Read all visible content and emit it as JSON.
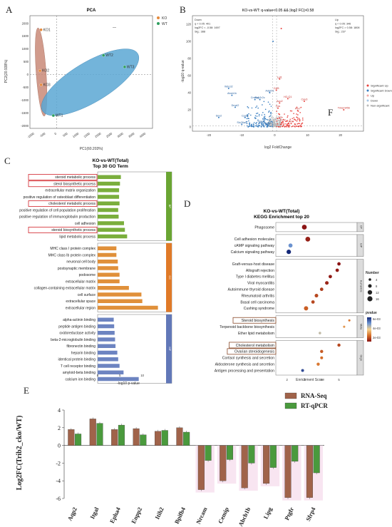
{
  "panels": {
    "a": "A",
    "b": "B",
    "c": "C",
    "d": "D",
    "e": "E",
    "f": "F"
  },
  "pca": {
    "title": "PCA",
    "xlabel": "PC1(60.203%)",
    "ylabel": "PC2(20.938%)",
    "legend": [
      {
        "name": "KO",
        "color": "#e58a3c"
      },
      {
        "name": "WT",
        "color": "#2e9e5e"
      }
    ],
    "dash_mark": "—",
    "xticks": [
      "-1000",
      "-500",
      "0",
      "500",
      "1000",
      "1500",
      "2000",
      "2500",
      "3000",
      "3500",
      "4000"
    ],
    "yticks": [
      "2000",
      "1500",
      "1000",
      "500",
      "0",
      "-500",
      "-1000",
      "-1500",
      "-2000"
    ],
    "points": [
      {
        "label": "KO1",
        "x": -700,
        "y": 1750,
        "group": "KO"
      },
      {
        "label": "KO2",
        "x": -750,
        "y": 150,
        "group": "KO"
      },
      {
        "label": "KO3",
        "x": -700,
        "y": -400,
        "group": "KO"
      },
      {
        "label": "WT1",
        "x": -150,
        "y": -1600,
        "group": "WT"
      },
      {
        "label": "WT2",
        "x": 2100,
        "y": 750,
        "group": "WT"
      },
      {
        "label": "WT3",
        "x": 3050,
        "y": 300,
        "group": "WT"
      }
    ]
  },
  "volcano": {
    "title": "KO-vs-WT: q-value<0.05 && |log2 FC|>0.58",
    "xlabel": "log2 FoldChange",
    "ylabel": "-log10 q-value",
    "down_box": [
      "Down",
      "q < 0.05: 401",
      "log2FC < -0.58: 1697",
      "Sig.: 388"
    ],
    "up_box": [
      "Up",
      "q < 0.05: 346",
      "log2FC > 0.58: 1808",
      "Sig.: 237"
    ],
    "legend": [
      {
        "name": "Significant Up",
        "color": "#e8413c"
      },
      {
        "name": "Significant Down",
        "color": "#3a7fc1"
      },
      {
        "name": "Up",
        "color": "#f2a9a6"
      },
      {
        "name": "Down",
        "color": "#a7c6e6"
      },
      {
        "name": "Non-significant",
        "color": "#bbbbbb"
      }
    ],
    "xticks": [
      "-20",
      "-10",
      "0",
      "10",
      "20"
    ],
    "yticks": [
      "0",
      "20",
      "40",
      "60",
      "80",
      "100",
      "120"
    ],
    "genes_down": [
      {
        "label": "Wscd2",
        "x": -14,
        "y": 45
      },
      {
        "label": "Abcb1b",
        "x": -13,
        "y": 37
      },
      {
        "label": "Cmss1",
        "x": -6,
        "y": 32
      },
      {
        "label": "Ppp2r2c",
        "x": -4.5,
        "y": 32
      },
      {
        "label": "Adgrb1",
        "x": -1.5,
        "y": 40
      },
      {
        "label": "Dmxl2",
        "x": -12,
        "y": 23
      },
      {
        "label": "Snx2",
        "x": -17,
        "y": 11
      },
      {
        "label": "Cpsf6",
        "x": -9,
        "y": 11
      },
      {
        "label": "Slc26a0",
        "x": -10,
        "y": 3
      },
      {
        "label": "Stmn1",
        "x": -4,
        "y": 4
      },
      {
        "label": "Ago2",
        "x": -2,
        "y": 2
      }
    ],
    "genes_up": [
      {
        "label": "Lyl1",
        "x": 1.5,
        "y": 56
      },
      {
        "label": "Ccl5",
        "x": 0.5,
        "y": 43
      },
      {
        "label": "Aco2",
        "x": 1.5,
        "y": 28
      },
      {
        "label": "H2-Q1",
        "x": 4,
        "y": 33
      },
      {
        "label": "Cav3",
        "x": 9,
        "y": 30
      },
      {
        "label": "Fos",
        "x": 1,
        "y": 22
      },
      {
        "label": "Ptk7",
        "x": 7,
        "y": 19
      },
      {
        "label": "Ccl2",
        "x": 2.5,
        "y": 6
      },
      {
        "label": "Rrm",
        "x": 5,
        "y": 4
      },
      {
        "label": "Tmem45b",
        "x": 21,
        "y": 20
      }
    ]
  },
  "go": {
    "title1": "KO-vs-WT(Total)",
    "title2": "Top 30 GO Term",
    "xlabel": "-log10 p-value",
    "xticks": [
      "0",
      "5",
      "10"
    ],
    "bp_tag": "BP",
    "cc_tag": "CC",
    "mf_tag": "MF",
    "bp": [
      {
        "term": "steroid metabolic process",
        "value": 5.2,
        "boxed": true
      },
      {
        "term": "sterol biosynthetic process",
        "value": 5.0,
        "boxed": true
      },
      {
        "term": "extracellular matrix organization",
        "value": 4.8,
        "boxed": false
      },
      {
        "term": "positive regulation of osteoblast differentiation",
        "value": 4.8,
        "boxed": false
      },
      {
        "term": "cholesterol metabolic process",
        "value": 4.9,
        "boxed": true
      },
      {
        "term": "positive regulation of cell population proliferation",
        "value": 4.6,
        "boxed": false
      },
      {
        "term": "positive regulation of immunoglobulin production",
        "value": 4.7,
        "boxed": false
      },
      {
        "term": "cell adhesion",
        "value": 5.9,
        "boxed": false
      },
      {
        "term": "steroid biosynthetic process",
        "value": 6.1,
        "boxed": true
      },
      {
        "term": "lipid metabolic process",
        "value": 6.6,
        "boxed": false
      }
    ],
    "cc": [
      {
        "term": "MHC class I protein complex",
        "value": 4.2
      },
      {
        "term": "MHC class Ib protein complex",
        "value": 4.2
      },
      {
        "term": "neuronal cell body",
        "value": 4.5
      },
      {
        "term": "postsynaptic membrane",
        "value": 4.6
      },
      {
        "term": "podosome",
        "value": 4.9
      },
      {
        "term": "extracellular matrix",
        "value": 4.9
      },
      {
        "term": "collagen-containing extracellular matrix",
        "value": 7.0
      },
      {
        "term": "cell surface",
        "value": 9.8
      },
      {
        "term": "extracellular space",
        "value": 10.0
      },
      {
        "term": "extracellular region",
        "value": 13.5
      }
    ],
    "mf": [
      {
        "term": "alpha-actinin binding",
        "value": 3.6
      },
      {
        "term": "peptide antigen binding",
        "value": 3.7
      },
      {
        "term": "oxidoreductase activity",
        "value": 3.8
      },
      {
        "term": "beta-2-microglobulin binding",
        "value": 3.9
      },
      {
        "term": "fibronectin binding",
        "value": 4.0
      },
      {
        "term": "heparin binding",
        "value": 4.4
      },
      {
        "term": "identical protein binding",
        "value": 4.6
      },
      {
        "term": "T cell receptor binding",
        "value": 4.9
      },
      {
        "term": "amyloid-beta binding",
        "value": 5.8
      },
      {
        "term": "calcium ion binding",
        "value": 9.2
      }
    ]
  },
  "kegg": {
    "title1": "KO-vs-WT(Total)",
    "title2": "KEGG Enrichment top 20",
    "xlabel": "Enrichment Score",
    "xticks": [
      "2",
      "3",
      "4",
      "5"
    ],
    "size_title": "Number",
    "size_items": [
      "4",
      "8",
      "12",
      "16"
    ],
    "color_title": "pvalue",
    "color_ticks": [
      "6e-03",
      "4e-03",
      "2e-03"
    ],
    "groups": [
      {
        "tag": "CP",
        "items": [
          {
            "term": "Phagosome",
            "score": 3.0,
            "n": 14,
            "p": 0.0003,
            "boxed": false
          }
        ]
      },
      {
        "tag": "EIP",
        "items": [
          {
            "term": "Cell adhesion molecules",
            "score": 3.2,
            "n": 14,
            "p": 0.0005,
            "boxed": false
          },
          {
            "term": "cAMP signaling pathway",
            "score": 2.2,
            "n": 10,
            "p": 0.005,
            "boxed": false
          },
          {
            "term": "Calcium signaling pathway",
            "score": 2.1,
            "n": 12,
            "p": 0.0065,
            "boxed": false
          }
        ]
      },
      {
        "tag": "HumanDis",
        "items": [
          {
            "term": "Graft-versus-host disease",
            "score": 5.0,
            "n": 7,
            "p": 0.0003,
            "boxed": false
          },
          {
            "term": "Allograft rejection",
            "score": 4.9,
            "n": 7,
            "p": 0.0004,
            "boxed": false
          },
          {
            "term": "Type I diabetes mellitus",
            "score": 4.5,
            "n": 7,
            "p": 0.0004,
            "boxed": false
          },
          {
            "term": "Viral myocarditis",
            "score": 4.3,
            "n": 8,
            "p": 0.0006,
            "boxed": false
          },
          {
            "term": "Autoimmune thyroid disease",
            "score": 4.0,
            "n": 7,
            "p": 0.001,
            "boxed": false
          },
          {
            "term": "Rheumatoid arthritis",
            "score": 3.7,
            "n": 8,
            "p": 0.0012,
            "boxed": false
          },
          {
            "term": "Basal cell carcinoma",
            "score": 3.5,
            "n": 7,
            "p": 0.0012,
            "boxed": false
          },
          {
            "term": "Cushing syndrome",
            "score": 3.1,
            "n": 11,
            "p": 0.0016,
            "boxed": false
          }
        ]
      },
      {
        "tag": "Meta",
        "items": [
          {
            "term": "Steroid biosynthesis",
            "score": 5.6,
            "n": 3,
            "p": 0.002,
            "boxed": true
          },
          {
            "term": "Terpenoid backbone biosynthesis",
            "score": 5.3,
            "n": 3,
            "p": 0.0025,
            "boxed": false
          },
          {
            "term": "Ether lipid metabolism",
            "score": 3.9,
            "n": 4,
            "p": 0.004,
            "boxed": false
          }
        ]
      },
      {
        "tag": "OrgS",
        "items": [
          {
            "term": "Cholesterol metabolism",
            "score": 5.0,
            "n": 6,
            "p": 0.0012,
            "boxed": true
          },
          {
            "term": "Ovarian steroidogenesis",
            "score": 4.0,
            "n": 6,
            "p": 0.0015,
            "boxed": true
          },
          {
            "term": "Cortisol synthesis and secretion",
            "score": 4.0,
            "n": 5,
            "p": 0.0018,
            "boxed": false
          },
          {
            "term": "Aldosterone synthesis and secretion",
            "score": 3.8,
            "n": 6,
            "p": 0.002,
            "boxed": false
          },
          {
            "term": "Antigen processing and presentation",
            "score": 2.9,
            "n": 5,
            "p": 0.006,
            "boxed": false
          }
        ]
      }
    ]
  },
  "chart_data": {
    "type": "bar",
    "ylabel": "Log2FC(Trib2_cko/WT)",
    "categories": [
      "Aqp2",
      "Itgal",
      "Epha4",
      "Enpp2",
      "Itih2",
      "Bpifb4",
      "Nrcam",
      "Cemip",
      "Abcb1b",
      "Lipg",
      "Ptgfr",
      "Sfrp4"
    ],
    "series": [
      {
        "name": "RNA-Seq",
        "color": "#a0634a",
        "values": [
          1.8,
          3.0,
          1.8,
          1.9,
          1.6,
          2.0,
          -5.0,
          -4.0,
          -4.8,
          -4.3,
          -5.9,
          -5.9
        ]
      },
      {
        "name": "RT-qPCR",
        "color": "#4a9a3d",
        "values": [
          1.3,
          2.5,
          2.3,
          1.2,
          1.7,
          1.5,
          -1.7,
          -1.6,
          -2.0,
          -2.5,
          -1.8,
          -3.1
        ]
      }
    ],
    "ylim": [
      -6,
      4
    ]
  }
}
